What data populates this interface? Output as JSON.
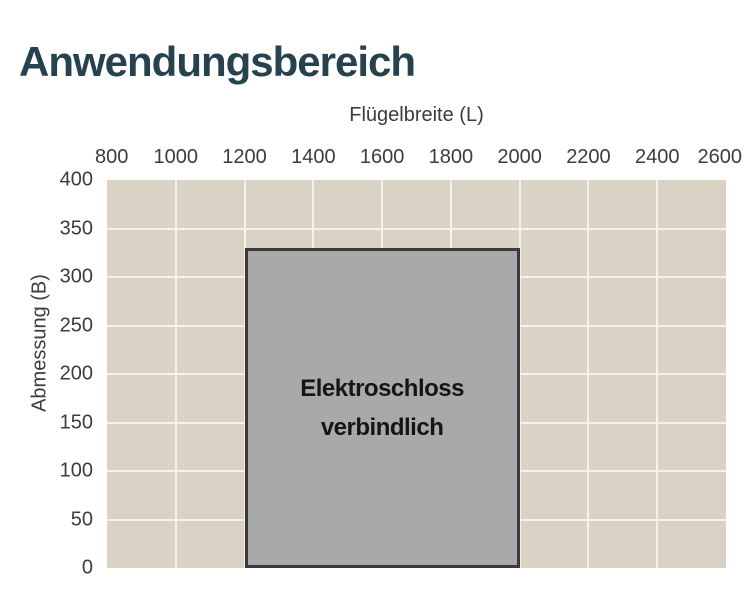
{
  "page": {
    "background": "#FFFFFF"
  },
  "header": {
    "title": "Anwendungsbereich",
    "title_color": "#26424F"
  },
  "chart_data": {
    "type": "area",
    "title": "Anwendungsbereich",
    "xlabel": "Flügelbreite (L)",
    "ylabel": "Abmessung (B)",
    "xlim": [
      800,
      2600
    ],
    "ylim": [
      0,
      400
    ],
    "x_ticks": [
      800,
      1000,
      1200,
      1400,
      1600,
      1800,
      2000,
      2200,
      2400,
      2600
    ],
    "y_ticks": [
      0,
      50,
      100,
      150,
      200,
      250,
      300,
      350,
      400
    ],
    "grid": true,
    "legend": false,
    "regions": [
      {
        "label": "Elektroschloss verbindlich",
        "label_lines": [
          "Elektroschloss",
          "verbindlich"
        ],
        "x_min": 1200,
        "x_max": 2000,
        "y_min": 0,
        "y_max": 330
      }
    ],
    "colors": {
      "plot_background": "#DAD3C5",
      "gridline": "#F5F2EB",
      "region_fill": "#A9A9AA",
      "region_border": "#3A3A3A",
      "region_text": "#151515",
      "axis_text": "#3C3C3B"
    }
  }
}
